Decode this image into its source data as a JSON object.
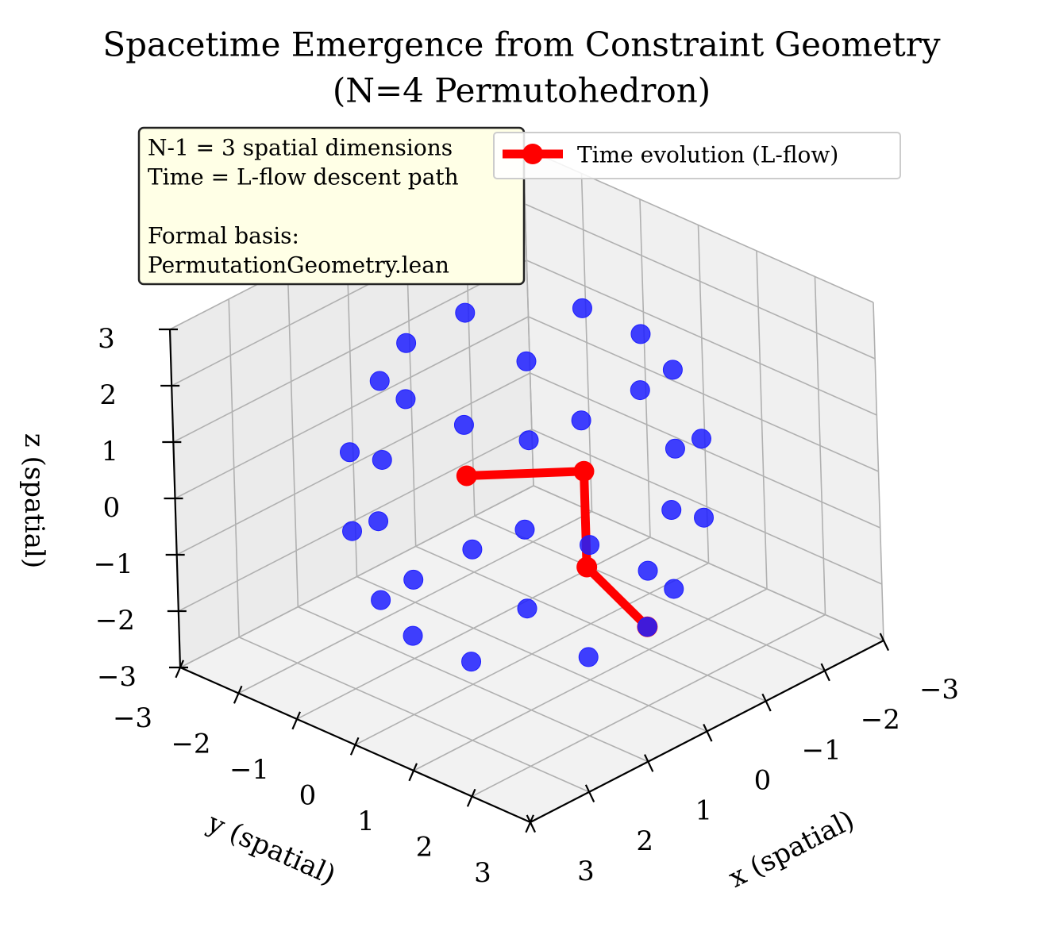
{
  "chart_data": {
    "type": "scatter",
    "projection": "3d",
    "title": [
      "Spacetime Emergence from Constraint Geometry",
      "(N=4 Permutohedron)"
    ],
    "xlabel": "x (spatial)",
    "ylabel": "y (spatial)",
    "zlabel": "z (spatial)",
    "xlim": [
      -3,
      3
    ],
    "ylim": [
      -3,
      3
    ],
    "zlim": [
      -3,
      3
    ],
    "x_ticks": [
      "−3",
      "−2",
      "−1",
      "0",
      "1",
      "2",
      "3"
    ],
    "y_ticks": [
      "−3",
      "−2",
      "−1",
      "0",
      "1",
      "2",
      "3"
    ],
    "z_ticks": [
      "−3",
      "−2",
      "−1",
      "0",
      "1",
      "2",
      "3"
    ],
    "grid": true,
    "legend_position": "top-right",
    "colors": {
      "points": "#1f1fff",
      "path": "#ff0000",
      "annotation_bg": "#ffffe6"
    },
    "annotation": {
      "lines": [
        "N-1 = 3 spatial dimensions",
        "Time = L-flow descent path",
        "",
        "Formal basis:",
        "PermutationGeometry.lean"
      ]
    },
    "series": [
      {
        "kind": "points",
        "points": [
          [
            -1.5,
            -0.5,
            -2.1
          ],
          [
            -1.5,
            0.5,
            -2.1
          ],
          [
            -0.5,
            -1.5,
            -2.1
          ],
          [
            0.5,
            -1.5,
            -2.1
          ],
          [
            -0.5,
            1.5,
            -2.1
          ],
          [
            0.5,
            1.5,
            -2.1
          ],
          [
            1.5,
            -0.5,
            -2.1
          ],
          [
            1.5,
            0.5,
            -2.1
          ],
          [
            -1.5,
            -1.5,
            -0.7
          ],
          [
            1.5,
            1.5,
            -0.7
          ],
          [
            -1.5,
            1.5,
            -0.7
          ],
          [
            1.5,
            -1.5,
            -0.7
          ],
          [
            -2.5,
            0.0,
            -0.7
          ],
          [
            0.0,
            2.5,
            -0.7
          ],
          [
            2.5,
            0.0,
            -0.7
          ],
          [
            0.0,
            -2.5,
            -0.7
          ],
          [
            -1.5,
            -1.5,
            0.7
          ],
          [
            1.5,
            1.5,
            0.7
          ],
          [
            -1.5,
            1.5,
            0.7
          ],
          [
            1.5,
            -1.5,
            0.7
          ],
          [
            -2.5,
            0.0,
            0.7
          ],
          [
            0.0,
            2.5,
            0.7
          ],
          [
            2.5,
            0.0,
            0.7
          ],
          [
            0.0,
            -2.5,
            0.7
          ],
          [
            -1.5,
            -0.5,
            2.1
          ],
          [
            -1.5,
            0.5,
            2.1
          ],
          [
            -0.5,
            -1.5,
            2.1
          ],
          [
            0.5,
            -1.5,
            2.1
          ],
          [
            -0.5,
            1.5,
            2.1
          ],
          [
            0.5,
            1.5,
            2.1
          ],
          [
            1.5,
            -0.5,
            2.1
          ],
          [
            1.5,
            0.5,
            2.1
          ]
        ]
      },
      {
        "kind": "path",
        "name": "Time evolution (L-flow)",
        "points": [
          [
            -0.5,
            1.5,
            -2.1
          ],
          [
            0.0,
            1.0,
            -1.0
          ],
          [
            0.0,
            1.0,
            0.7
          ],
          [
            1.0,
            0.0,
            0.7
          ]
        ]
      }
    ]
  }
}
